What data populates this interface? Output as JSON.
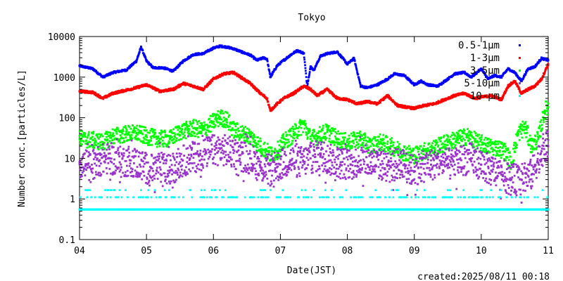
{
  "chart_data": {
    "type": "scatter",
    "title": "Tokyo",
    "xlabel": "Date(JST)",
    "ylabel": "Number conc.[particles/L]",
    "created": "created:2025/08/11 00:18",
    "y_scale": "log",
    "ylim": [
      0.1,
      10000
    ],
    "xlim": [
      4,
      11
    ],
    "x_ticks": [
      {
        "value": 4,
        "label": "04"
      },
      {
        "value": 5,
        "label": "05"
      },
      {
        "value": 6,
        "label": "06"
      },
      {
        "value": 7,
        "label": "07"
      },
      {
        "value": 8,
        "label": "08"
      },
      {
        "value": 9,
        "label": "09"
      },
      {
        "value": 10,
        "label": "10"
      },
      {
        "value": 11,
        "label": "11"
      }
    ],
    "y_ticks": [
      {
        "value": 0.1,
        "label": "0.1"
      },
      {
        "value": 1,
        "label": "1"
      },
      {
        "value": 10,
        "label": "10"
      },
      {
        "value": 100,
        "label": "100"
      },
      {
        "value": 1000,
        "label": "1000"
      },
      {
        "value": 10000,
        "label": "10000"
      }
    ],
    "grid": false,
    "legend_position": "top-right",
    "series": [
      {
        "name": "0.5-1μm",
        "color": "#0000ff",
        "x": [
          4.0,
          4.2,
          4.35,
          4.5,
          4.7,
          4.85,
          4.92,
          5.0,
          5.1,
          5.25,
          5.4,
          5.55,
          5.7,
          5.85,
          6.0,
          6.1,
          6.2,
          6.3,
          6.45,
          6.55,
          6.65,
          6.75,
          6.8,
          6.85,
          6.95,
          7.05,
          7.15,
          7.25,
          7.35,
          7.4,
          7.45,
          7.5,
          7.6,
          7.7,
          7.85,
          8.0,
          8.1,
          8.2,
          8.3,
          8.45,
          8.6,
          8.7,
          8.85,
          9.0,
          9.1,
          9.2,
          9.35,
          9.5,
          9.6,
          9.75,
          9.85,
          10.0,
          10.1,
          10.2,
          10.3,
          10.4,
          10.5,
          10.6,
          10.7,
          10.8,
          10.9,
          11.0
        ],
        "y": [
          1900,
          1600,
          1000,
          1300,
          1500,
          2500,
          5500,
          2500,
          1700,
          1700,
          1400,
          2500,
          3600,
          3800,
          5200,
          5800,
          5500,
          5000,
          4000,
          3500,
          2600,
          3000,
          2800,
          1000,
          1900,
          2600,
          3500,
          4500,
          3900,
          600,
          1800,
          1500,
          3300,
          3800,
          4200,
          2100,
          2900,
          600,
          550,
          650,
          900,
          1200,
          1100,
          650,
          800,
          650,
          600,
          900,
          1200,
          1300,
          1000,
          1600,
          900,
          1100,
          1000,
          1600,
          1300,
          800,
          1600,
          1800,
          2900,
          2600
        ]
      },
      {
        "name": "1-3μm",
        "color": "#ff0000",
        "x": [
          4.0,
          4.2,
          4.35,
          4.5,
          4.7,
          4.85,
          5.0,
          5.2,
          5.4,
          5.55,
          5.7,
          5.85,
          6.0,
          6.15,
          6.3,
          6.45,
          6.55,
          6.7,
          6.8,
          6.85,
          6.95,
          7.05,
          7.2,
          7.35,
          7.45,
          7.55,
          7.7,
          7.85,
          8.0,
          8.15,
          8.3,
          8.45,
          8.6,
          8.75,
          8.9,
          9.0,
          9.15,
          9.3,
          9.45,
          9.6,
          9.75,
          9.9,
          10.0,
          10.15,
          10.3,
          10.4,
          10.5,
          10.6,
          10.7,
          10.8,
          10.9,
          11.0
        ],
        "y": [
          450,
          420,
          300,
          400,
          480,
          550,
          650,
          450,
          500,
          700,
          600,
          500,
          900,
          1200,
          1300,
          900,
          700,
          400,
          300,
          150,
          220,
          300,
          400,
          600,
          500,
          350,
          500,
          300,
          280,
          220,
          250,
          220,
          350,
          200,
          180,
          170,
          200,
          220,
          280,
          350,
          400,
          300,
          320,
          350,
          280,
          600,
          800,
          400,
          500,
          600,
          900,
          2100
        ]
      },
      {
        "name": "3-5μm",
        "color": "#00ff00",
        "x": [
          4.0,
          4.2,
          4.35,
          4.5,
          4.7,
          4.85,
          5.0,
          5.2,
          5.35,
          5.5,
          5.7,
          5.85,
          6.0,
          6.1,
          6.2,
          6.3,
          6.45,
          6.55,
          6.7,
          6.8,
          6.85,
          6.95,
          7.05,
          7.2,
          7.35,
          7.45,
          7.55,
          7.7,
          7.85,
          8.0,
          8.2,
          8.35,
          8.5,
          8.65,
          8.8,
          9.0,
          9.15,
          9.3,
          9.5,
          9.65,
          9.8,
          9.95,
          10.1,
          10.25,
          10.35,
          10.45,
          10.55,
          10.65,
          10.75,
          10.85,
          10.95,
          11.0
        ],
        "y": [
          30,
          28,
          25,
          35,
          40,
          42,
          35,
          30,
          30,
          45,
          55,
          50,
          80,
          100,
          90,
          50,
          40,
          35,
          20,
          15,
          12,
          15,
          25,
          40,
          70,
          30,
          35,
          45,
          30,
          25,
          30,
          20,
          25,
          20,
          15,
          12,
          15,
          18,
          25,
          30,
          35,
          25,
          20,
          18,
          15,
          8,
          40,
          60,
          20,
          30,
          150,
          180
        ]
      },
      {
        "name": "5-10μm",
        "color": "#9932cc",
        "x": [
          4.0,
          4.15,
          4.3,
          4.45,
          4.6,
          4.75,
          4.9,
          5.05,
          5.2,
          5.35,
          5.5,
          5.65,
          5.8,
          5.95,
          6.1,
          6.25,
          6.4,
          6.55,
          6.7,
          6.85,
          7.0,
          7.15,
          7.3,
          7.45,
          7.6,
          7.75,
          7.9,
          8.05,
          8.2,
          8.35,
          8.5,
          8.65,
          8.8,
          8.95,
          9.1,
          9.25,
          9.4,
          9.55,
          9.7,
          9.85,
          10.0,
          10.15,
          10.3,
          10.45,
          10.6,
          10.75,
          10.9,
          11.0
        ],
        "y": [
          8,
          6,
          9,
          10,
          8,
          9,
          7,
          5,
          6,
          5,
          8,
          10,
          12,
          15,
          17,
          14,
          12,
          10,
          6,
          5,
          7,
          9,
          8,
          10,
          12,
          9,
          8,
          7,
          9,
          8,
          7,
          6,
          8,
          5,
          6,
          7,
          8,
          7,
          9,
          10,
          7,
          5,
          4,
          3,
          3,
          4,
          15,
          20
        ]
      },
      {
        "name": "10-μm",
        "color": "#00ffff",
        "x": [
          4.0,
          4.2,
          4.4,
          4.6,
          4.8,
          5.0,
          5.2,
          5.4,
          5.6,
          5.8,
          6.0,
          6.2,
          6.4,
          6.6,
          6.8,
          7.0,
          7.2,
          7.4,
          7.6,
          7.8,
          8.0,
          8.2,
          8.4,
          8.6,
          8.8,
          9.0,
          9.2,
          9.4,
          9.6,
          9.8,
          10.0,
          10.2,
          10.4,
          10.6,
          10.8,
          11.0
        ],
        "y": [
          0.55,
          0.55,
          0.55,
          0.55,
          0.55,
          0.55,
          0.55,
          0.55,
          0.55,
          0.55,
          0.55,
          0.55,
          0.55,
          0.55,
          0.55,
          0.55,
          0.55,
          0.55,
          0.55,
          0.55,
          0.55,
          0.55,
          0.55,
          0.55,
          0.55,
          0.55,
          0.55,
          0.55,
          0.55,
          0.55,
          0.55,
          0.55,
          0.55,
          0.55,
          0.55,
          0.55
        ]
      }
    ]
  }
}
